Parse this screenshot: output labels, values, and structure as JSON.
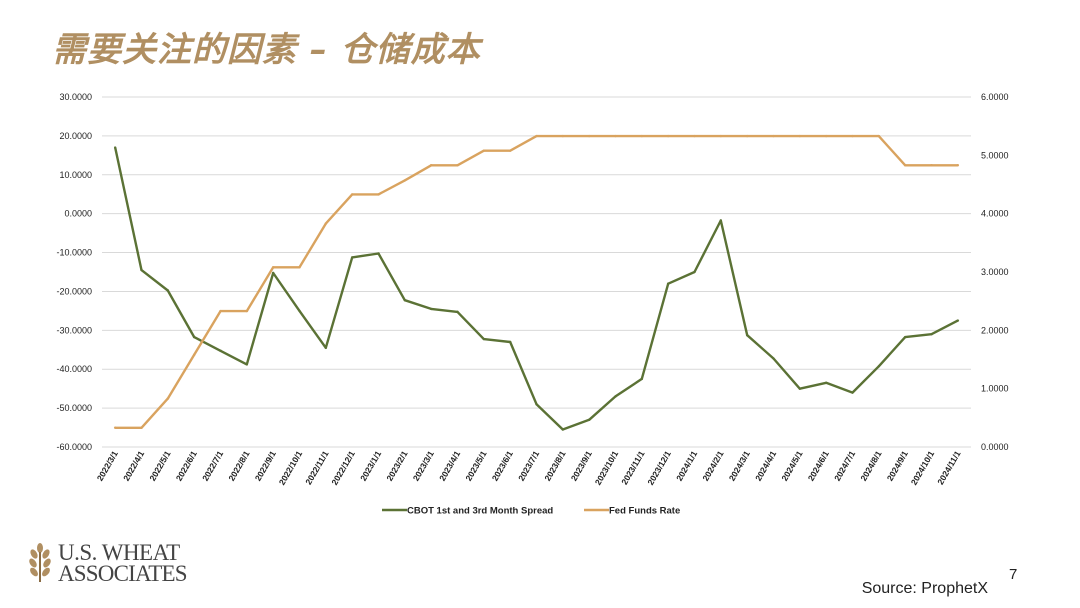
{
  "slide": {
    "title": "需要关注的因素 – 仓储成本",
    "source": "Source: ProphetX",
    "page_number": "7",
    "logo_line1": "U.S. WHEAT",
    "logo_line2": "ASSOCIATES"
  },
  "colors": {
    "title": "#b08f62",
    "spread": "#5b7235",
    "fed": "#d9a35f",
    "grid": "#d9d9d9",
    "axis_text": "#222222"
  },
  "chart_data": {
    "type": "line",
    "categories": [
      "2022/3/1",
      "2022/4/1",
      "2022/5/1",
      "2022/6/1",
      "2022/7/1",
      "2022/8/1",
      "2022/9/1",
      "2022/10/1",
      "2022/11/1",
      "2022/12/1",
      "2023/1/1",
      "2023/2/1",
      "2023/3/1",
      "2023/4/1",
      "2023/5/1",
      "2023/6/1",
      "2023/7/1",
      "2023/8/1",
      "2023/9/1",
      "2023/10/1",
      "2023/11/1",
      "2023/12/1",
      "2024/1/1",
      "2024/2/1",
      "2024/3/1",
      "2024/4/1",
      "2024/5/1",
      "2024/6/1",
      "2024/7/1",
      "2024/8/1",
      "2024/9/1",
      "2024/10/1",
      "2024/11/1"
    ],
    "series": [
      {
        "name": "CBOT 1st and 3rd Month Spread",
        "axis": "left",
        "color": "#5b7235",
        "values": [
          17.0,
          -14.5,
          -19.75,
          -31.75,
          -35.25,
          -38.75,
          -15.25,
          -25.0,
          -34.5,
          -11.25,
          -10.25,
          -22.25,
          -24.5,
          -25.25,
          -32.25,
          -33.0,
          -49.0,
          -55.5,
          -53.0,
          -47.0,
          -42.5,
          -18.0,
          -15.0,
          -1.75,
          -31.25,
          -37.25,
          -45.0,
          -43.5,
          -46.0,
          -39.25,
          -31.75,
          -31.0,
          -27.5
        ]
      },
      {
        "name": "Fed Funds Rate",
        "axis": "right",
        "color": "#d9a35f",
        "values": [
          0.33,
          0.33,
          0.83,
          1.58,
          2.33,
          2.33,
          3.08,
          3.08,
          3.83,
          4.33,
          4.33,
          4.57,
          4.83,
          4.83,
          5.08,
          5.08,
          5.33,
          5.33,
          5.33,
          5.33,
          5.33,
          5.33,
          5.33,
          5.33,
          5.33,
          5.33,
          5.33,
          5.33,
          5.33,
          5.33,
          4.83,
          4.83,
          4.83
        ]
      }
    ],
    "y_left": {
      "min": -60,
      "max": 30,
      "step": 10,
      "tick_labels": [
        "30.0000",
        "20.0000",
        "10.0000",
        "0.0000",
        "-10.0000",
        "-20.0000",
        "-30.0000",
        "-40.0000",
        "-50.0000",
        "-60.0000"
      ]
    },
    "y_right": {
      "min": 0,
      "max": 6,
      "step": 1,
      "tick_labels": [
        "6.0000",
        "5.0000",
        "4.0000",
        "3.0000",
        "2.0000",
        "1.0000",
        "0.0000"
      ]
    },
    "grid": true,
    "legend_position": "bottom"
  }
}
